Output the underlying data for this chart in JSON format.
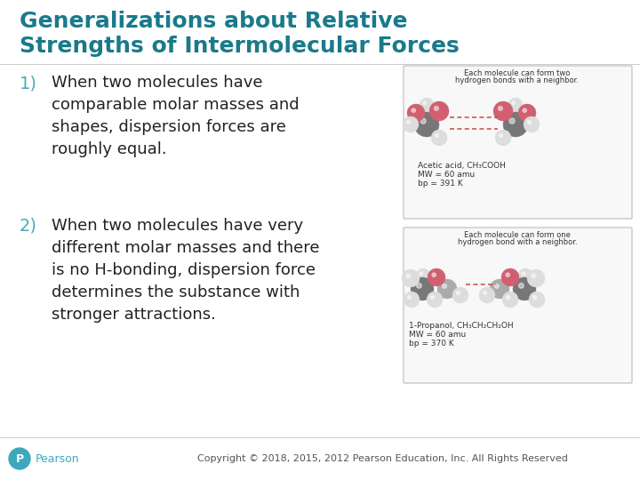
{
  "title_line1": "Generalizations about Relative",
  "title_line2": "Strengths of Intermolecular Forces",
  "title_color": "#1a7a8a",
  "title_fontsize": 18,
  "bg_color": "#ffffff",
  "item1_number": "1)",
  "item1_text": "When two molecules have\ncomparable molar masses and\nshapes, dispersion forces are\nroughly equal.",
  "item2_number": "2)",
  "item2_text": "When two molecules have very\ndifferent molar masses and there\nis no H-bonding, dispersion force\ndetermines the substance with\nstronger attractions.",
  "item_number_color": "#4aabb8",
  "item_text_color": "#222222",
  "item_fontsize": 13,
  "item_number_fontsize": 14,
  "footer_text": "Copyright © 2018, 2015, 2012 Pearson Education, Inc. All Rights Reserved",
  "footer_color": "#555555",
  "footer_fontsize": 8,
  "pearson_text": "Pearson",
  "pearson_color": "#3da8bc",
  "pearson_logo_color": "#3da8bc",
  "divider_color": "#cccccc",
  "label1_line1": "Each molecule can form two",
  "label1_line2": "hydrogen bonds with a neighbor.",
  "label2_line1": "Each molecule can form one",
  "label2_line2": "hydrogen bond with a neighbor.",
  "caption1_line1": "Acetic acid, CH₃COOH",
  "caption1_line2": "MW = 60 amu",
  "caption1_line3": "bp = 391 K",
  "caption2_line1": "1-Propanol, CH₃CH₂CH₂OH",
  "caption2_line2": "MW = 60 amu",
  "caption2_line3": "bp = 370 K",
  "gray_color": "#aaaaaa",
  "pink_color": "#d06070",
  "white_sphere": "#dddddd",
  "dark_gray": "#777777",
  "box_edge_color": "#bbbbbb",
  "box_face_color": "#f8f8f8",
  "dashed_line_color": "#cc5555"
}
